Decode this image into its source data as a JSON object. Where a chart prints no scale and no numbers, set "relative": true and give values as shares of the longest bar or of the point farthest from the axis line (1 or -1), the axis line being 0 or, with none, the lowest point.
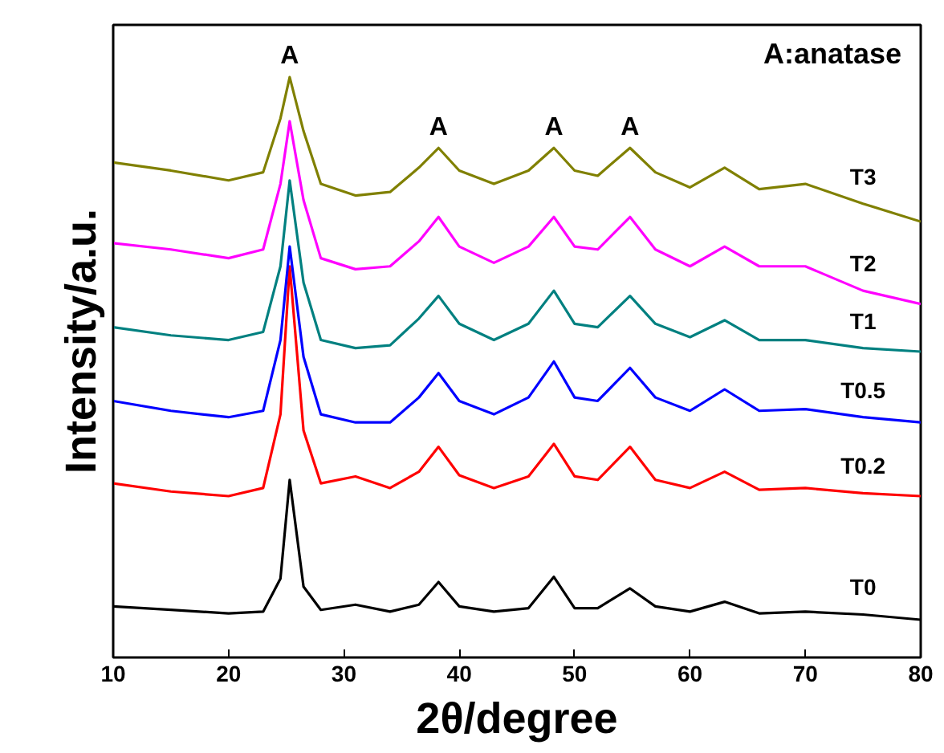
{
  "chart_data": {
    "type": "line",
    "relative": true,
    "xlabel": "2θ/degree",
    "ylabel": "Intensity/a.u.",
    "xlim": [
      10,
      80
    ],
    "xticks": [
      10,
      20,
      30,
      40,
      50,
      60,
      70,
      80
    ],
    "tick_labels": "x",
    "legend": false,
    "grid": false,
    "x": [
      10,
      15,
      20,
      23,
      24.5,
      25.3,
      26.5,
      28,
      31,
      34,
      36.5,
      38.2,
      40,
      43,
      46,
      48.2,
      50,
      52,
      54.8,
      57,
      60,
      63,
      66,
      70,
      75,
      80
    ],
    "series": [
      {
        "name": "T0",
        "color": "#000000",
        "values": [
          0.088,
          0.082,
          0.076,
          0.079,
          0.136,
          0.306,
          0.122,
          0.082,
          0.091,
          0.079,
          0.091,
          0.13,
          0.088,
          0.079,
          0.085,
          0.139,
          0.085,
          0.085,
          0.119,
          0.088,
          0.079,
          0.096,
          0.076,
          0.079,
          0.074,
          0.065
        ]
      },
      {
        "name": "T0.2",
        "color": "#ff0000",
        "values": [
          0.3,
          0.286,
          0.278,
          0.292,
          0.419,
          0.674,
          0.391,
          0.3,
          0.312,
          0.292,
          0.32,
          0.363,
          0.314,
          0.292,
          0.312,
          0.368,
          0.312,
          0.306,
          0.363,
          0.306,
          0.292,
          0.32,
          0.289,
          0.292,
          0.283,
          0.278
        ]
      },
      {
        "name": "T0.5",
        "color": "#0000ff",
        "values": [
          0.442,
          0.425,
          0.414,
          0.425,
          0.547,
          0.708,
          0.518,
          0.419,
          0.405,
          0.405,
          0.448,
          0.49,
          0.442,
          0.419,
          0.448,
          0.51,
          0.448,
          0.442,
          0.499,
          0.448,
          0.425,
          0.462,
          0.425,
          0.428,
          0.414,
          0.405
        ]
      },
      {
        "name": "T1",
        "color": "#008080",
        "values": [
          0.569,
          0.555,
          0.547,
          0.561,
          0.674,
          0.822,
          0.646,
          0.547,
          0.533,
          0.538,
          0.584,
          0.623,
          0.575,
          0.547,
          0.575,
          0.632,
          0.575,
          0.569,
          0.623,
          0.575,
          0.552,
          0.581,
          0.547,
          0.547,
          0.533,
          0.527
        ]
      },
      {
        "name": "T2",
        "color": "#ff00ff",
        "values": [
          0.714,
          0.703,
          0.688,
          0.703,
          0.816,
          0.924,
          0.788,
          0.688,
          0.669,
          0.674,
          0.717,
          0.759,
          0.708,
          0.68,
          0.708,
          0.759,
          0.708,
          0.703,
          0.759,
          0.703,
          0.674,
          0.708,
          0.674,
          0.674,
          0.632,
          0.609
        ]
      },
      {
        "name": "T3",
        "color": "#808000",
        "values": [
          0.853,
          0.839,
          0.822,
          0.836,
          0.929,
          1,
          0.907,
          0.816,
          0.796,
          0.802,
          0.844,
          0.878,
          0.839,
          0.816,
          0.839,
          0.878,
          0.839,
          0.83,
          0.878,
          0.836,
          0.81,
          0.844,
          0.807,
          0.816,
          0.782,
          0.751
        ]
      }
    ],
    "annotations": [
      {
        "text": "A",
        "x": 25.3,
        "y": 1.0
      },
      {
        "text": "A",
        "x": 38.2,
        "y": 0.878
      },
      {
        "text": "A",
        "x": 48.2,
        "y": 0.878
      },
      {
        "text": "A",
        "x": 54.8,
        "y": 0.878
      },
      "A:anatase"
    ]
  }
}
